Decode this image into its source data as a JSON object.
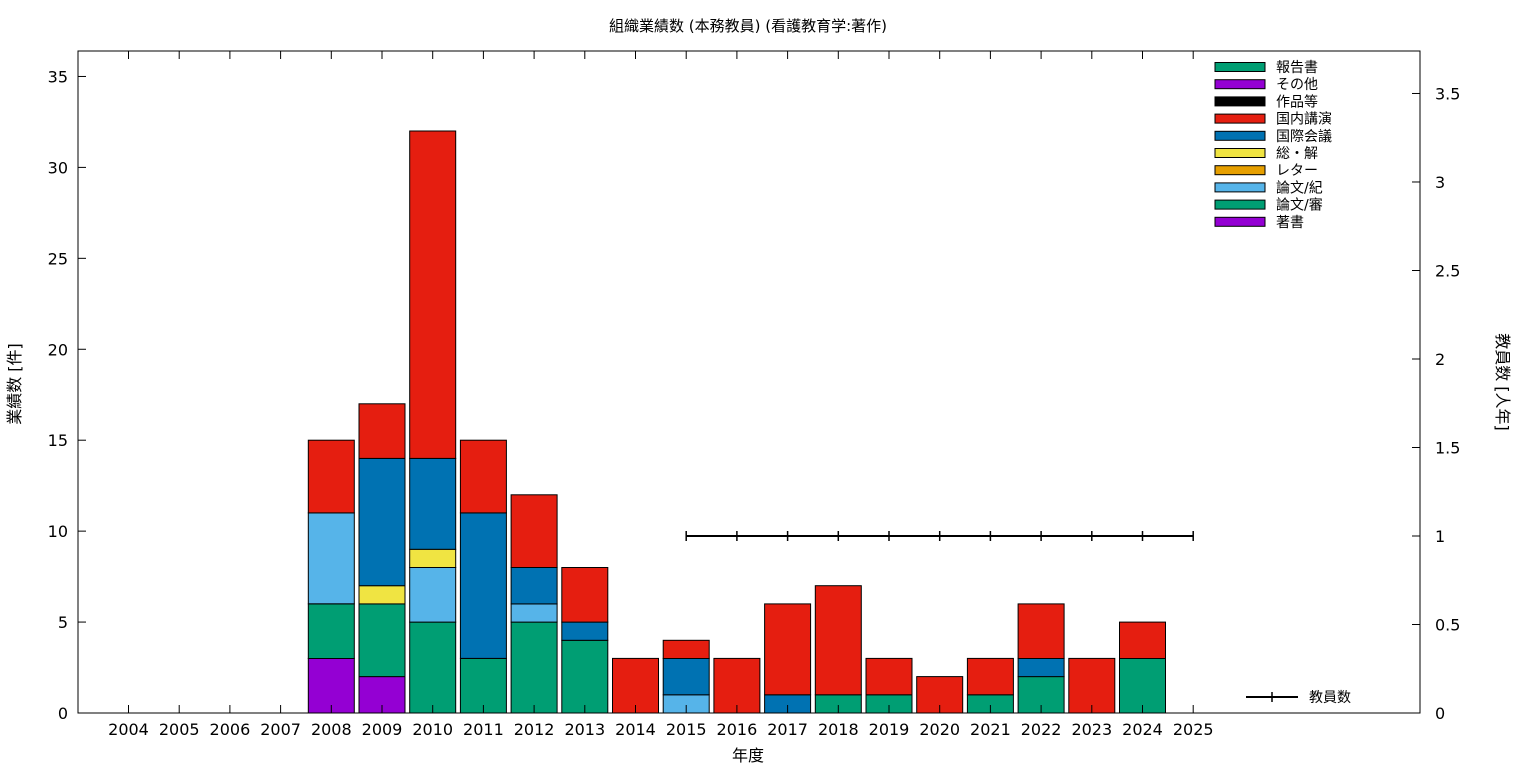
{
  "chart_data": {
    "type": "bar",
    "stacked": true,
    "title": "組織業績数 (本務教員) (看護教育学:著作)",
    "xlabel": "年度",
    "ylabel": "業績数 [件]",
    "y2label": "教員数 [人年]",
    "ylim": [
      0,
      36.4
    ],
    "y2lim": [
      0,
      3.74
    ],
    "yticks": [
      "0",
      "5",
      "10",
      "15",
      "20",
      "25",
      "30",
      "35"
    ],
    "y2ticks": [
      "0",
      "0.5",
      "1",
      "1.5",
      "2",
      "2.5",
      "3",
      "3.5"
    ],
    "categories": [
      "2004",
      "2005",
      "2006",
      "2007",
      "2008",
      "2009",
      "2010",
      "2011",
      "2012",
      "2013",
      "2014",
      "2015",
      "2016",
      "2017",
      "2018",
      "2019",
      "2020",
      "2021",
      "2022",
      "2023",
      "2024",
      "2025"
    ],
    "grid": false,
    "legend_position": "top-right",
    "series": [
      {
        "name": "著書",
        "color": "#9400d3",
        "values": [
          0,
          0,
          0,
          0,
          3,
          2,
          0,
          0,
          0,
          0,
          0,
          0,
          0,
          0,
          0,
          0,
          0,
          0,
          0,
          0,
          0,
          0
        ]
      },
      {
        "name": "論文/審",
        "color": "#009e73",
        "values": [
          0,
          0,
          0,
          0,
          3,
          4,
          5,
          3,
          5,
          4,
          0,
          0,
          0,
          0,
          1,
          1,
          0,
          1,
          2,
          0,
          3,
          0
        ]
      },
      {
        "name": "論文/紀",
        "color": "#56b4e9",
        "values": [
          0,
          0,
          0,
          0,
          5,
          0,
          3,
          0,
          1,
          0,
          0,
          1,
          0,
          0,
          0,
          0,
          0,
          0,
          0,
          0,
          0,
          0
        ]
      },
      {
        "name": "レター",
        "color": "#e69f00",
        "values": [
          0,
          0,
          0,
          0,
          0,
          0,
          0,
          0,
          0,
          0,
          0,
          0,
          0,
          0,
          0,
          0,
          0,
          0,
          0,
          0,
          0,
          0
        ]
      },
      {
        "name": "総・解",
        "color": "#f0e442",
        "values": [
          0,
          0,
          0,
          0,
          0,
          1,
          1,
          0,
          0,
          0,
          0,
          0,
          0,
          0,
          0,
          0,
          0,
          0,
          0,
          0,
          0,
          0
        ]
      },
      {
        "name": "国際会議",
        "color": "#0072b2",
        "values": [
          0,
          0,
          0,
          0,
          0,
          7,
          5,
          8,
          2,
          1,
          0,
          2,
          0,
          1,
          0,
          0,
          0,
          0,
          1,
          0,
          0,
          0
        ]
      },
      {
        "name": "国内講演",
        "color": "#e51e10",
        "values": [
          0,
          0,
          0,
          0,
          4,
          3,
          18,
          4,
          4,
          3,
          3,
          1,
          3,
          5,
          6,
          2,
          2,
          2,
          3,
          3,
          2,
          0
        ]
      },
      {
        "name": "作品等",
        "color": "#000000",
        "values": [
          0,
          0,
          0,
          0,
          0,
          0,
          0,
          0,
          0,
          0,
          0,
          0,
          0,
          0,
          0,
          0,
          0,
          0,
          0,
          0,
          0,
          0
        ]
      },
      {
        "name": "その他",
        "color": "#9400d3",
        "values": [
          0,
          0,
          0,
          0,
          0,
          0,
          0,
          0,
          0,
          0,
          0,
          0,
          0,
          0,
          0,
          0,
          0,
          0,
          0,
          0,
          0,
          0
        ]
      },
      {
        "name": "報告書",
        "color": "#009e73",
        "values": [
          0,
          0,
          0,
          0,
          0,
          0,
          0,
          0,
          0,
          0,
          0,
          0,
          0,
          0,
          0,
          0,
          0,
          0,
          0,
          0,
          0,
          0
        ]
      }
    ],
    "line_series": {
      "name": "教員数",
      "axis": "y2",
      "color": "#000000",
      "x": [
        "2015",
        "2016",
        "2017",
        "2018",
        "2019",
        "2020",
        "2021",
        "2022",
        "2023",
        "2024",
        "2025"
      ],
      "values": [
        1,
        1,
        1,
        1,
        1,
        1,
        1,
        1,
        1,
        1,
        1
      ]
    }
  }
}
